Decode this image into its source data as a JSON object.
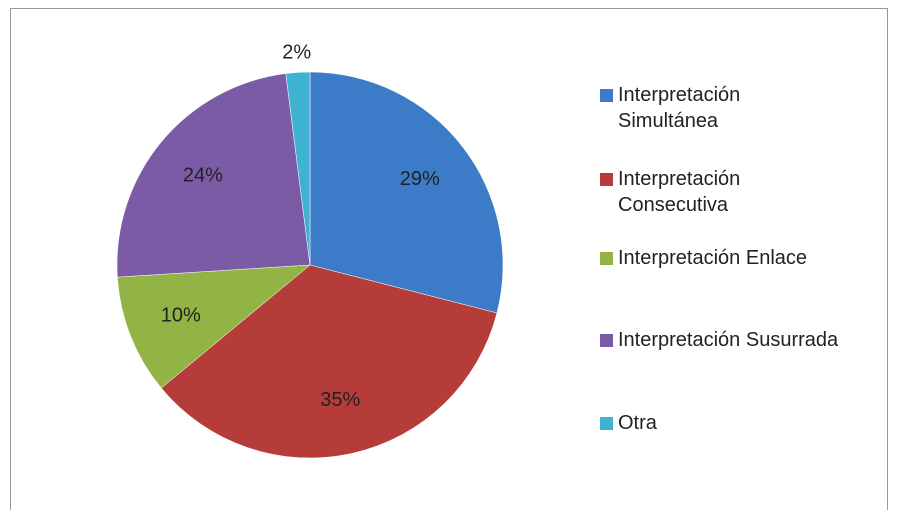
{
  "chart_data": {
    "type": "pie",
    "categories": [
      "Interpretación Simultánea",
      "Interpretación Consecutiva",
      "Interpretación Enlace",
      "Interpretación Susurrada",
      "Otra"
    ],
    "values": [
      29,
      35,
      10,
      24,
      2
    ],
    "value_labels": [
      "29%",
      "35%",
      "10%",
      "24%",
      "2%"
    ],
    "colors": [
      "#3c7bc8",
      "#b53c38",
      "#91b444",
      "#7b5ba6",
      "#3db3d1"
    ],
    "legend": "right"
  }
}
